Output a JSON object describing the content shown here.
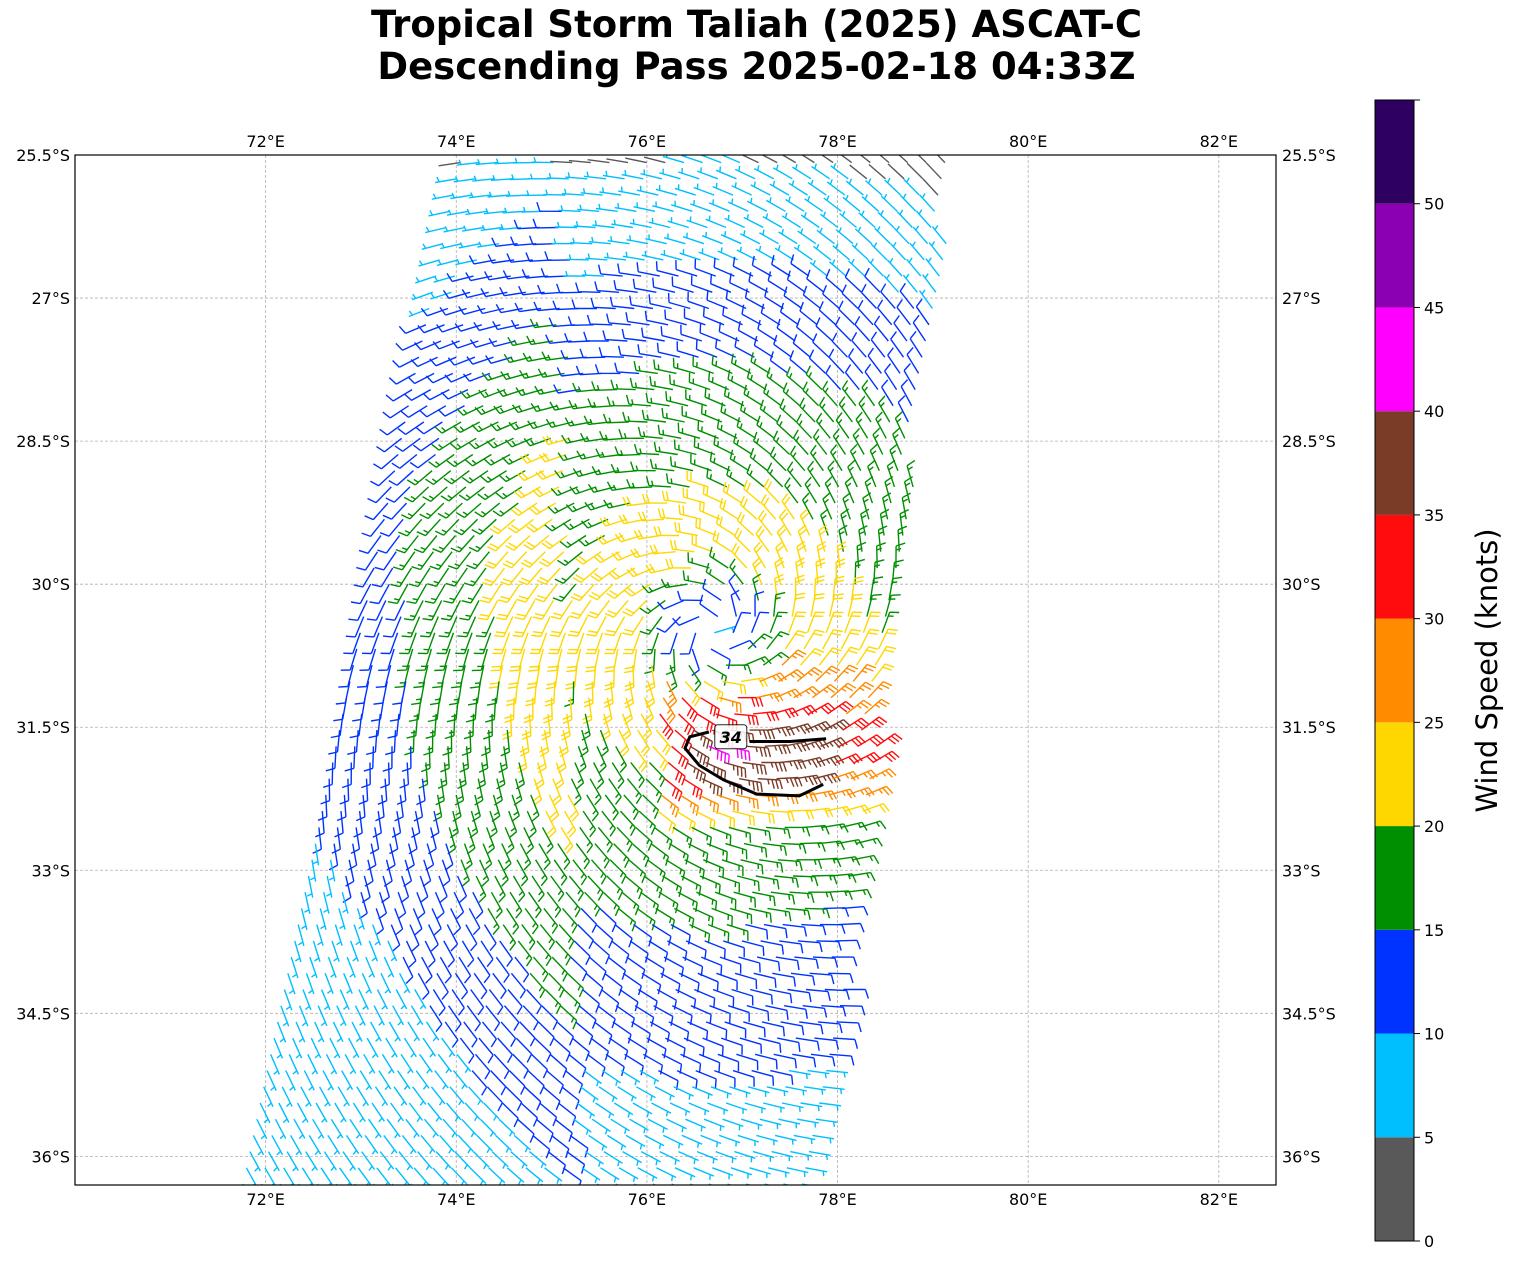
{
  "chart_data": {
    "type": "scatter",
    "chart_kind": "wind barb map (scatterometer pass)",
    "title": "Tropical Storm Taliah (2025) ASCAT-C",
    "subtitle": "Descending Pass 2025-02-18 04:33Z",
    "x_ticks": [
      "72°E",
      "74°E",
      "76°E",
      "78°E",
      "80°E",
      "82°E"
    ],
    "y_ticks": [
      "25.5°S",
      "27°S",
      "28.5°S",
      "30°S",
      "31.5°S",
      "33°S",
      "34.5°S",
      "36°S"
    ],
    "lon_range": [
      70.0,
      82.6
    ],
    "lat_range": [
      -36.3,
      -25.5
    ],
    "grid": true,
    "storm_center": {
      "lon": 76.7,
      "lat": -30.5
    },
    "swath": {
      "top_left": [
        74.0,
        -25.5
      ],
      "top_right": [
        79.3,
        -25.5
      ],
      "bottom_left": [
        71.7,
        -36.3
      ],
      "bottom_right": [
        77.8,
        -36.3
      ]
    },
    "contour": {
      "label": "34",
      "level_kt": 34,
      "color": "#000000"
    },
    "colorbar": {
      "label": "Wind Speed (knots)",
      "boundaries": [
        0,
        5,
        10,
        15,
        20,
        25,
        30,
        35,
        40,
        45,
        50,
        55
      ],
      "tick_labels": [
        "0",
        "5",
        "10",
        "15",
        "20",
        "25",
        "30",
        "35",
        "40",
        "45",
        "50"
      ],
      "colors": [
        "#595959",
        "#00bfff",
        "#0033ff",
        "#008f00",
        "#ffd700",
        "#ff8c00",
        "#ff0d0d",
        "#7a3b27",
        "#ff00ff",
        "#8c00b3",
        "#2e0060"
      ]
    }
  }
}
